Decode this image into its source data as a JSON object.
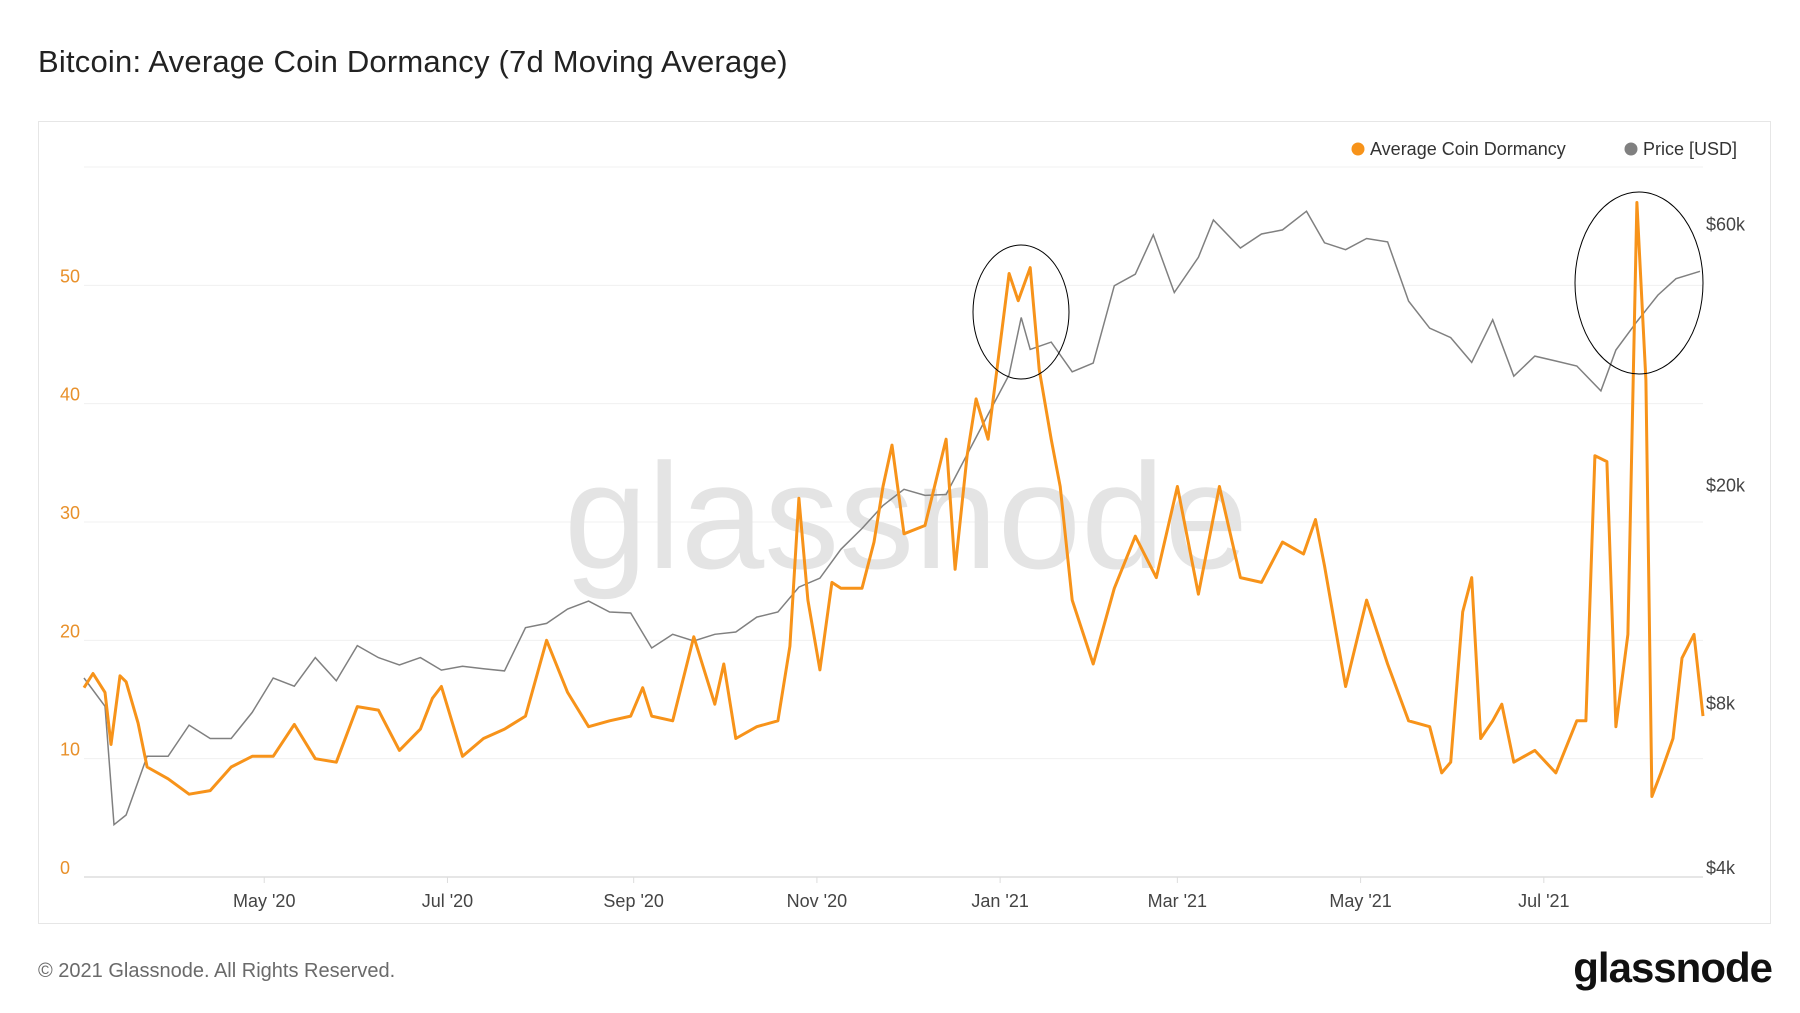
{
  "title": "Bitcoin: Average Coin Dormancy (7d Moving Average)",
  "footer": "© 2021 Glassnode. All Rights Reserved.",
  "logo_text": "glassnode",
  "watermark": "glassnode",
  "colors": {
    "dormancy": "#f7931a",
    "price": "#808080",
    "left_axis_text": "#e8902a",
    "annotation": "#000000"
  },
  "chart_data": {
    "type": "line",
    "title": "Bitcoin: Average Coin Dormancy (7d Moving Average)",
    "legend": {
      "position": "top-right",
      "entries": [
        "Average Coin Dormancy",
        "Price [USD]"
      ]
    },
    "grid": true,
    "x_ticks": [
      {
        "date": "2020-05-01",
        "label": "May '20"
      },
      {
        "date": "2020-07-01",
        "label": "Jul '20"
      },
      {
        "date": "2020-09-01",
        "label": "Sep '20"
      },
      {
        "date": "2020-11-01",
        "label": "Nov '20"
      },
      {
        "date": "2021-01-01",
        "label": "Jan '21"
      },
      {
        "date": "2021-03-01",
        "label": "Mar '21"
      },
      {
        "date": "2021-05-01",
        "label": "May '21"
      },
      {
        "date": "2021-07-01",
        "label": "Jul '21"
      }
    ],
    "xlim": [
      "2020-03-02",
      "2021-08-23"
    ],
    "y_left": {
      "ylim": [
        0,
        60
      ],
      "ticks": [
        {
          "v": 0,
          "label": "0"
        },
        {
          "v": 10,
          "label": "10"
        },
        {
          "v": 20,
          "label": "20"
        },
        {
          "v": 30,
          "label": "30"
        },
        {
          "v": 40,
          "label": "40"
        },
        {
          "v": 50,
          "label": "50"
        }
      ],
      "gridlines": [
        0,
        10,
        20,
        30,
        40,
        50,
        60
      ]
    },
    "y_right": {
      "scale": "log",
      "ticks": [
        {
          "v": 4000,
          "label": "$4k"
        },
        {
          "v": 8000,
          "label": "$8k"
        },
        {
          "v": 20000,
          "label": "$20k"
        },
        {
          "v": 60000,
          "label": "$60k"
        }
      ]
    },
    "annotations": [
      {
        "type": "ellipse",
        "around": "2021-01-08"
      },
      {
        "type": "ellipse",
        "around": "2021-08-01"
      }
    ],
    "series": [
      {
        "name": "Average Coin Dormancy",
        "axis": "left",
        "points": [
          [
            "2020-03-02",
            16
          ],
          [
            "2020-03-05",
            17.2
          ],
          [
            "2020-03-09",
            15.6
          ],
          [
            "2020-03-11",
            11.2
          ],
          [
            "2020-03-14",
            17
          ],
          [
            "2020-03-16",
            16.5
          ],
          [
            "2020-03-20",
            13
          ],
          [
            "2020-03-23",
            9.3
          ],
          [
            "2020-03-30",
            8.3
          ],
          [
            "2020-04-06",
            7
          ],
          [
            "2020-04-13",
            7.3
          ],
          [
            "2020-04-20",
            9.3
          ],
          [
            "2020-04-27",
            10.2
          ],
          [
            "2020-05-04",
            10.2
          ],
          [
            "2020-05-11",
            12.9
          ],
          [
            "2020-05-18",
            10
          ],
          [
            "2020-05-25",
            9.7
          ],
          [
            "2020-06-01",
            14.4
          ],
          [
            "2020-06-08",
            14.1
          ],
          [
            "2020-06-15",
            10.7
          ],
          [
            "2020-06-22",
            12.5
          ],
          [
            "2020-06-26",
            15.1
          ],
          [
            "2020-06-29",
            16.1
          ],
          [
            "2020-07-06",
            10.2
          ],
          [
            "2020-07-13",
            11.7
          ],
          [
            "2020-07-20",
            12.5
          ],
          [
            "2020-07-27",
            13.6
          ],
          [
            "2020-08-03",
            20
          ],
          [
            "2020-08-10",
            15.6
          ],
          [
            "2020-08-17",
            12.7
          ],
          [
            "2020-08-24",
            13.2
          ],
          [
            "2020-08-31",
            13.6
          ],
          [
            "2020-09-04",
            16
          ],
          [
            "2020-09-07",
            13.6
          ],
          [
            "2020-09-14",
            13.2
          ],
          [
            "2020-09-21",
            20.3
          ],
          [
            "2020-09-28",
            14.6
          ],
          [
            "2020-10-01",
            18
          ],
          [
            "2020-10-05",
            11.7
          ],
          [
            "2020-10-12",
            12.7
          ],
          [
            "2020-10-19",
            13.2
          ],
          [
            "2020-10-23",
            19.5
          ],
          [
            "2020-10-26",
            32
          ],
          [
            "2020-10-29",
            23.4
          ],
          [
            "2020-11-02",
            17.5
          ],
          [
            "2020-11-06",
            24.9
          ],
          [
            "2020-11-09",
            24.4
          ],
          [
            "2020-11-13",
            24.4
          ],
          [
            "2020-11-16",
            24.4
          ],
          [
            "2020-11-20",
            28.3
          ],
          [
            "2020-11-23",
            33
          ],
          [
            "2020-11-26",
            36.5
          ],
          [
            "2020-11-30",
            29
          ],
          [
            "2020-12-07",
            29.7
          ],
          [
            "2020-12-14",
            37
          ],
          [
            "2020-12-17",
            26
          ],
          [
            "2020-12-21",
            35.6
          ],
          [
            "2020-12-24",
            40.4
          ],
          [
            "2020-12-28",
            37
          ],
          [
            "2020-12-31",
            43
          ],
          [
            "2021-01-04",
            51
          ],
          [
            "2021-01-07",
            48.7
          ],
          [
            "2021-01-11",
            51.5
          ],
          [
            "2021-01-14",
            42.9
          ],
          [
            "2021-01-18",
            37
          ],
          [
            "2021-01-21",
            33
          ],
          [
            "2021-01-25",
            23.4
          ],
          [
            "2021-02-01",
            18
          ],
          [
            "2021-02-08",
            24.4
          ],
          [
            "2021-02-15",
            28.8
          ],
          [
            "2021-02-22",
            25.3
          ],
          [
            "2021-03-01",
            33
          ],
          [
            "2021-03-08",
            23.9
          ],
          [
            "2021-03-15",
            33
          ],
          [
            "2021-03-22",
            25.3
          ],
          [
            "2021-03-29",
            24.9
          ],
          [
            "2021-04-05",
            28.3
          ],
          [
            "2021-04-12",
            27.3
          ],
          [
            "2021-04-16",
            30.2
          ],
          [
            "2021-04-19",
            26.3
          ],
          [
            "2021-04-26",
            16.1
          ],
          [
            "2021-05-03",
            23.4
          ],
          [
            "2021-05-10",
            18
          ],
          [
            "2021-05-17",
            13.2
          ],
          [
            "2021-05-24",
            12.7
          ],
          [
            "2021-05-28",
            8.8
          ],
          [
            "2021-05-31",
            9.7
          ],
          [
            "2021-06-04",
            22.4
          ],
          [
            "2021-06-07",
            25.3
          ],
          [
            "2021-06-10",
            11.7
          ],
          [
            "2021-06-14",
            13.2
          ],
          [
            "2021-06-17",
            14.6
          ],
          [
            "2021-06-21",
            9.7
          ],
          [
            "2021-06-28",
            10.7
          ],
          [
            "2021-07-05",
            8.8
          ],
          [
            "2021-07-12",
            13.2
          ],
          [
            "2021-07-15",
            13.2
          ],
          [
            "2021-07-18",
            35.6
          ],
          [
            "2021-07-22",
            35.1
          ],
          [
            "2021-07-25",
            12.7
          ],
          [
            "2021-07-29",
            20.5
          ],
          [
            "2021-08-01",
            57
          ],
          [
            "2021-08-04",
            42
          ],
          [
            "2021-08-06",
            6.8
          ],
          [
            "2021-08-09",
            8.8
          ],
          [
            "2021-08-13",
            11.7
          ],
          [
            "2021-08-16",
            18.5
          ],
          [
            "2021-08-20",
            20.5
          ],
          [
            "2021-08-23",
            13.6
          ]
        ]
      },
      {
        "name": "Price [USD]",
        "axis": "right",
        "points": [
          [
            "2020-03-02",
            8900
          ],
          [
            "2020-03-09",
            7900
          ],
          [
            "2020-03-12",
            4800
          ],
          [
            "2020-03-16",
            5000
          ],
          [
            "2020-03-23",
            6400
          ],
          [
            "2020-03-30",
            6400
          ],
          [
            "2020-04-06",
            7300
          ],
          [
            "2020-04-13",
            6900
          ],
          [
            "2020-04-20",
            6900
          ],
          [
            "2020-04-27",
            7700
          ],
          [
            "2020-05-04",
            8900
          ],
          [
            "2020-05-11",
            8600
          ],
          [
            "2020-05-18",
            9700
          ],
          [
            "2020-05-25",
            8800
          ],
          [
            "2020-06-01",
            10200
          ],
          [
            "2020-06-08",
            9700
          ],
          [
            "2020-06-15",
            9400
          ],
          [
            "2020-06-22",
            9700
          ],
          [
            "2020-06-29",
            9200
          ],
          [
            "2020-07-06",
            9350
          ],
          [
            "2020-07-13",
            9250
          ],
          [
            "2020-07-20",
            9170
          ],
          [
            "2020-07-27",
            11000
          ],
          [
            "2020-08-03",
            11200
          ],
          [
            "2020-08-10",
            11900
          ],
          [
            "2020-08-17",
            12300
          ],
          [
            "2020-08-24",
            11750
          ],
          [
            "2020-08-31",
            11700
          ],
          [
            "2020-09-07",
            10100
          ],
          [
            "2020-09-14",
            10700
          ],
          [
            "2020-09-21",
            10400
          ],
          [
            "2020-09-28",
            10700
          ],
          [
            "2020-10-05",
            10800
          ],
          [
            "2020-10-12",
            11500
          ],
          [
            "2020-10-19",
            11750
          ],
          [
            "2020-10-26",
            13050
          ],
          [
            "2020-11-02",
            13550
          ],
          [
            "2020-11-09",
            15300
          ],
          [
            "2020-11-16",
            16700
          ],
          [
            "2020-11-23",
            18400
          ],
          [
            "2020-11-30",
            19700
          ],
          [
            "2020-12-07",
            19200
          ],
          [
            "2020-12-14",
            19270
          ],
          [
            "2020-12-21",
            22800
          ],
          [
            "2020-12-28",
            27000
          ],
          [
            "2021-01-04",
            31900
          ],
          [
            "2021-01-08",
            40600
          ],
          [
            "2021-01-11",
            35500
          ],
          [
            "2021-01-18",
            36600
          ],
          [
            "2021-01-25",
            32300
          ],
          [
            "2021-02-01",
            33500
          ],
          [
            "2021-02-08",
            46400
          ],
          [
            "2021-02-15",
            48700
          ],
          [
            "2021-02-21",
            57500
          ],
          [
            "2021-02-28",
            45100
          ],
          [
            "2021-03-08",
            52300
          ],
          [
            "2021-03-13",
            61200
          ],
          [
            "2021-03-22",
            54400
          ],
          [
            "2021-03-29",
            57700
          ],
          [
            "2021-04-05",
            58700
          ],
          [
            "2021-04-13",
            63500
          ],
          [
            "2021-04-19",
            55600
          ],
          [
            "2021-04-26",
            54000
          ],
          [
            "2021-05-03",
            56600
          ],
          [
            "2021-05-10",
            55800
          ],
          [
            "2021-05-17",
            43500
          ],
          [
            "2021-05-24",
            38800
          ],
          [
            "2021-05-31",
            37300
          ],
          [
            "2021-06-07",
            33600
          ],
          [
            "2021-06-14",
            40200
          ],
          [
            "2021-06-21",
            31700
          ],
          [
            "2021-06-28",
            34500
          ],
          [
            "2021-07-05",
            33800
          ],
          [
            "2021-07-12",
            33100
          ],
          [
            "2021-07-20",
            29800
          ],
          [
            "2021-07-25",
            35400
          ],
          [
            "2021-08-01",
            39900
          ],
          [
            "2021-08-08",
            44600
          ],
          [
            "2021-08-14",
            47800
          ],
          [
            "2021-08-22",
            49300
          ]
        ]
      }
    ]
  }
}
